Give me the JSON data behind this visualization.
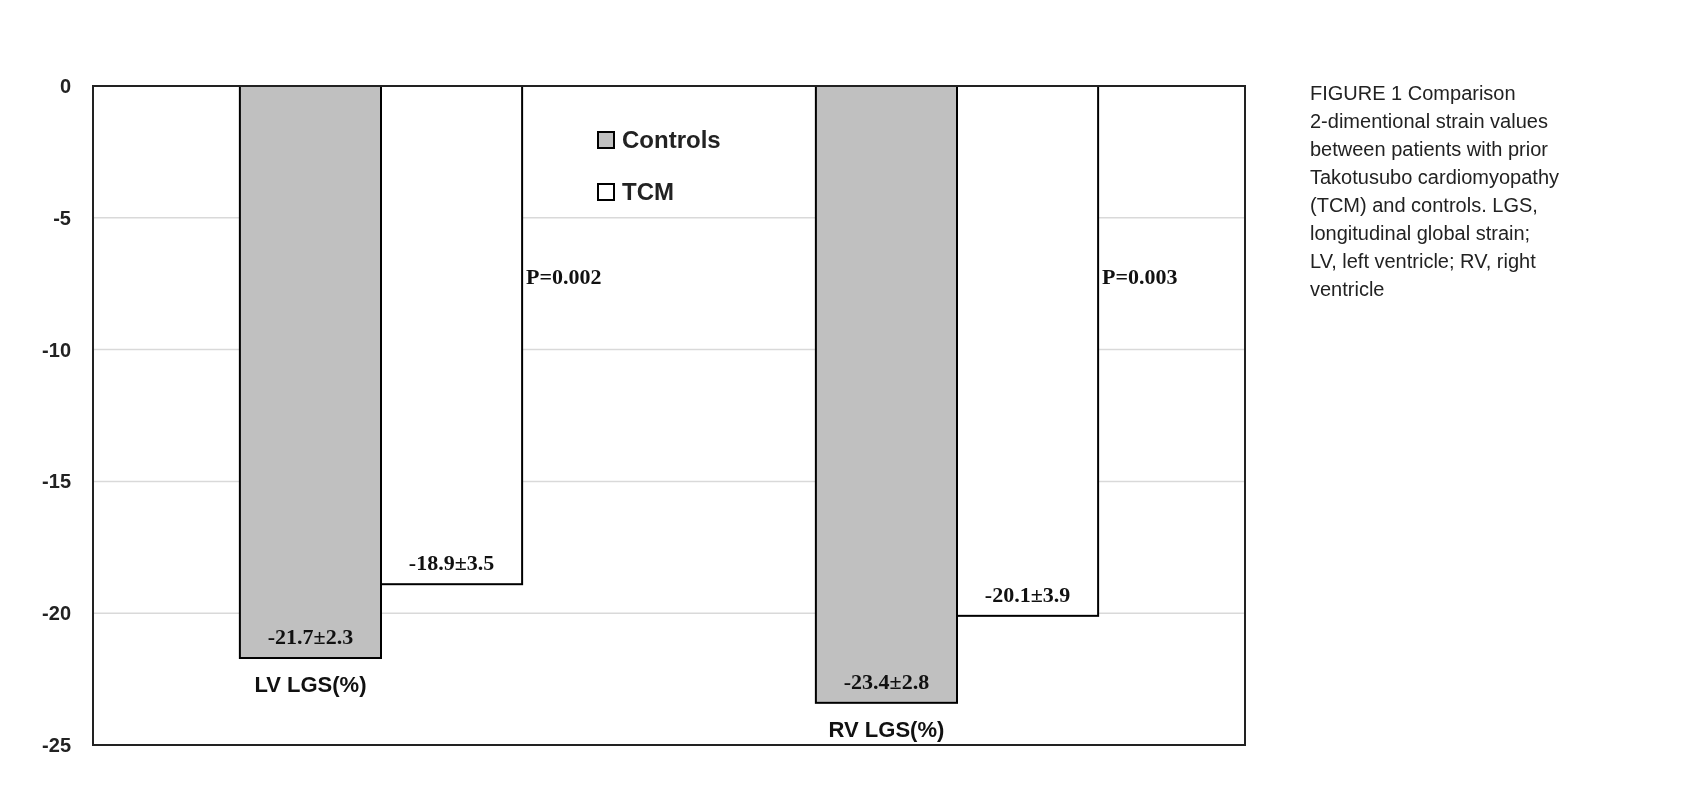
{
  "chart_data": {
    "type": "bar",
    "categories": [
      "LV LGS(%)",
      "RV LGS(%)"
    ],
    "series": [
      {
        "name": "Controls",
        "color": "#c0c0c0",
        "values": [
          -21.7,
          -23.4
        ],
        "value_labels": [
          "-21.7±2.3",
          "-23.4±2.8"
        ]
      },
      {
        "name": "TCM",
        "color": "#ffffff",
        "values": [
          -18.9,
          -20.1
        ],
        "value_labels": [
          "-18.9±3.5",
          "-20.1±3.9"
        ]
      }
    ],
    "ylim": [
      -25,
      0
    ],
    "yticks": [
      0,
      -5,
      -10,
      -15,
      -20,
      -25
    ],
    "grid": "y",
    "legend": "top",
    "annotations": [
      "P=0.002",
      "P=0.003",
      "FIGURE 1 Comparison 2-dimentional strain values between patients with prior Takotusubo cardiomyopathy (TCM) and controls. LGS, longitudinal global strain; LV, left ventricle; RV, right ventricle"
    ]
  }
}
